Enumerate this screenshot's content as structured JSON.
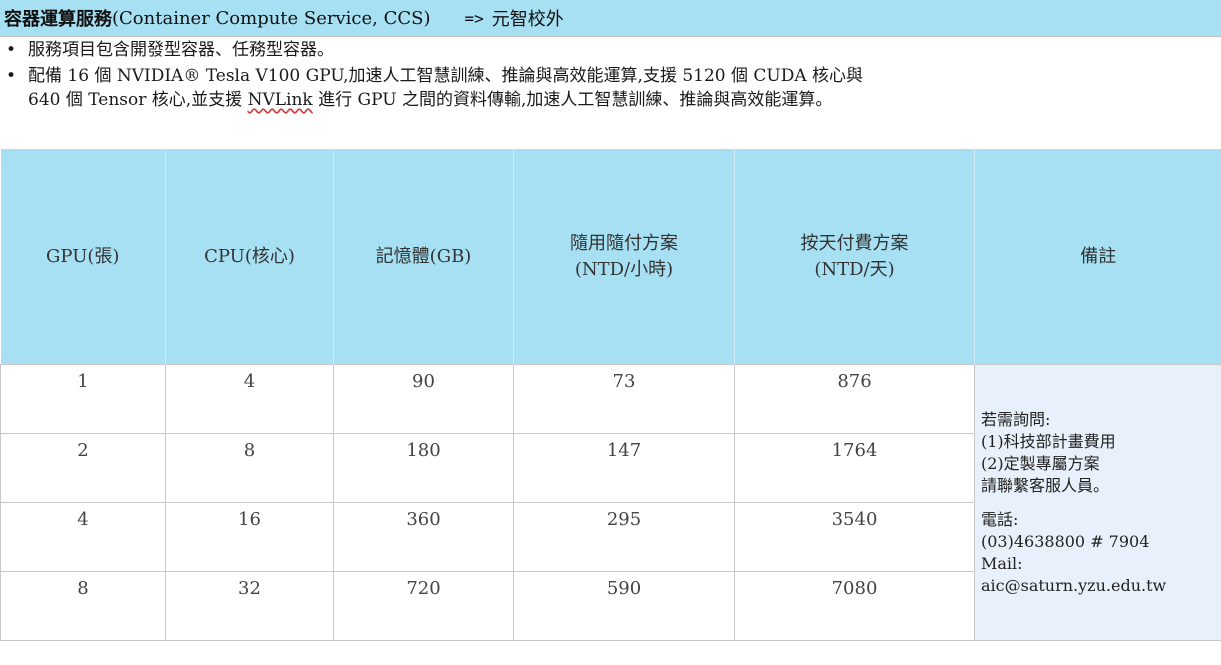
{
  "title": {
    "service_name": "容器運算服務",
    "service_name_en": "(Container Compute Service, CCS)",
    "arrow": "=>",
    "campus": "元智校外"
  },
  "intro": {
    "bullet": "•",
    "line1": "服務項目包含開發型容器、任務型容器。",
    "line2": "配備 16 個 NVIDIA® Tesla V100 GPU,加速人工智慧訓練、推論與高效能運算,支援 5120 個 CUDA 核心與",
    "line3_before": "640 個 Tensor 核心,並支援 ",
    "line3_link": "NVLink",
    "line3_after": " 進行 GPU 之間的資料傳輸,加速人工智慧訓練、推論與高效能運算。"
  },
  "table": {
    "headers": {
      "gpu": "GPU(張)",
      "cpu": "CPU(核心)",
      "memory": "記憶體(GB)",
      "hourly_1": "隨用隨付方案",
      "hourly_2": "(NTD/小時)",
      "daily_1": "按天付費方案",
      "daily_2": "(NTD/天)",
      "notes": "備註"
    },
    "rows": [
      {
        "gpu": "1",
        "cpu": "4",
        "memory": "90",
        "hourly": "73",
        "daily": "876"
      },
      {
        "gpu": "2",
        "cpu": "8",
        "memory": "180",
        "hourly": "147",
        "daily": "1764"
      },
      {
        "gpu": "4",
        "cpu": "16",
        "memory": "360",
        "hourly": "295",
        "daily": "3540"
      },
      {
        "gpu": "8",
        "cpu": "32",
        "memory": "720",
        "hourly": "590",
        "daily": "7080"
      }
    ],
    "notes": {
      "inquiry": "若需詢問:",
      "item1": "(1)科技部計畫費用",
      "item2": "(2)定製專屬方案",
      "contact": "請聯繫客服人員。",
      "phone_label": "電話:",
      "phone": "(03)4638800 # 7904",
      "mail_label": "Mail:",
      "mail": "aic@saturn.yzu.edu.tw"
    }
  }
}
